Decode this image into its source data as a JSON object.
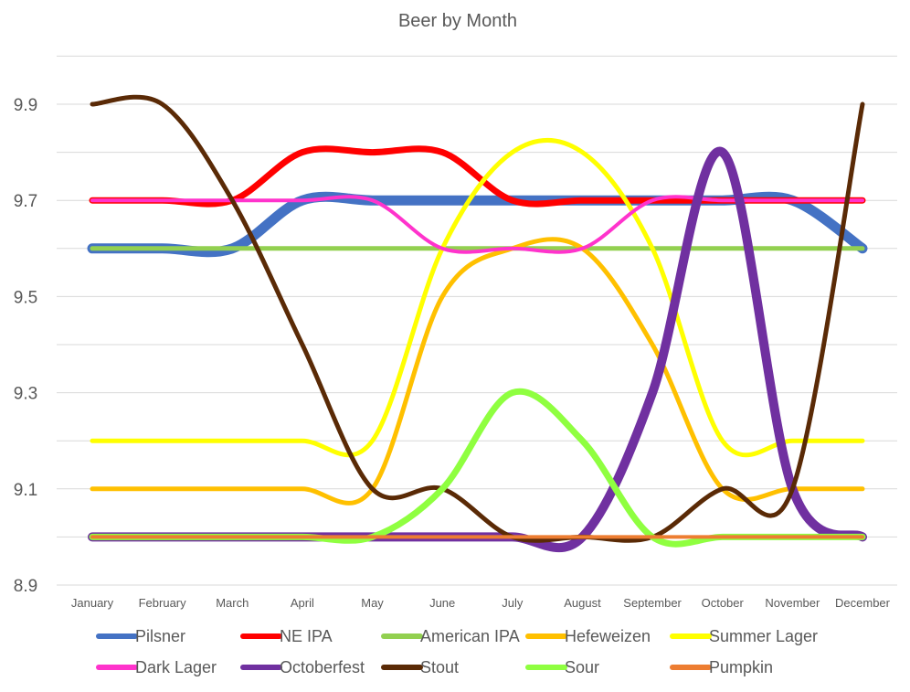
{
  "chart_data": {
    "type": "line",
    "title": "Beer by Month",
    "xlabel": "",
    "ylabel": "",
    "categories": [
      "January",
      "February",
      "March",
      "April",
      "May",
      "June",
      "July",
      "August",
      "September",
      "October",
      "November",
      "December"
    ],
    "y_ticks": [
      "8.9",
      "9.1",
      "9.3",
      "9.5",
      "9.7",
      "9.9"
    ],
    "ylim": [
      8.9,
      10.0
    ],
    "grid": true,
    "legend_position": "bottom",
    "series": [
      {
        "name": "Pilsner",
        "color": "#4472C4",
        "values": [
          9.6,
          9.6,
          9.6,
          9.7,
          9.7,
          9.7,
          9.7,
          9.7,
          9.7,
          9.7,
          9.7,
          9.6
        ]
      },
      {
        "name": "NE IPA",
        "color": "#FF0000",
        "values": [
          9.7,
          9.7,
          9.7,
          9.8,
          9.8,
          9.8,
          9.7,
          9.7,
          9.7,
          9.7,
          9.7,
          9.7
        ]
      },
      {
        "name": "American IPA",
        "color": "#92D050",
        "values": [
          9.6,
          9.6,
          9.6,
          9.6,
          9.6,
          9.6,
          9.6,
          9.6,
          9.6,
          9.6,
          9.6,
          9.6
        ]
      },
      {
        "name": "Hefeweizen",
        "color": "#FFC000",
        "values": [
          9.1,
          9.1,
          9.1,
          9.1,
          9.1,
          9.5,
          9.6,
          9.6,
          9.4,
          9.1,
          9.1,
          9.1
        ]
      },
      {
        "name": "Summer Lager",
        "color": "#FFFF00",
        "values": [
          9.2,
          9.2,
          9.2,
          9.2,
          9.2,
          9.6,
          9.8,
          9.8,
          9.6,
          9.2,
          9.2,
          9.2
        ]
      },
      {
        "name": "Dark Lager",
        "color": "#FF33CC",
        "values": [
          9.7,
          9.7,
          9.7,
          9.7,
          9.7,
          9.6,
          9.6,
          9.6,
          9.7,
          9.7,
          9.7,
          9.7
        ]
      },
      {
        "name": "Octoberfest",
        "color": "#7030A0",
        "values": [
          9.0,
          9.0,
          9.0,
          9.0,
          9.0,
          9.0,
          9.0,
          9.0,
          9.3,
          9.8,
          9.1,
          9.0
        ]
      },
      {
        "name": "Stout",
        "color": "#5A2A06",
        "values": [
          9.9,
          9.9,
          9.7,
          9.4,
          9.1,
          9.1,
          9.0,
          9.0,
          9.0,
          9.1,
          9.1,
          9.9
        ]
      },
      {
        "name": "Sour",
        "color": "#8FFF40",
        "values": [
          9.0,
          9.0,
          9.0,
          9.0,
          9.0,
          9.1,
          9.3,
          9.2,
          9.0,
          9.0,
          9.0,
          9.0
        ]
      },
      {
        "name": "Pumpkin",
        "color": "#ED7D31",
        "values": [
          9.0,
          9.0,
          9.0,
          9.0,
          9.0,
          9.0,
          9.0,
          9.0,
          9.0,
          9.0,
          9.0,
          9.0
        ]
      }
    ]
  }
}
